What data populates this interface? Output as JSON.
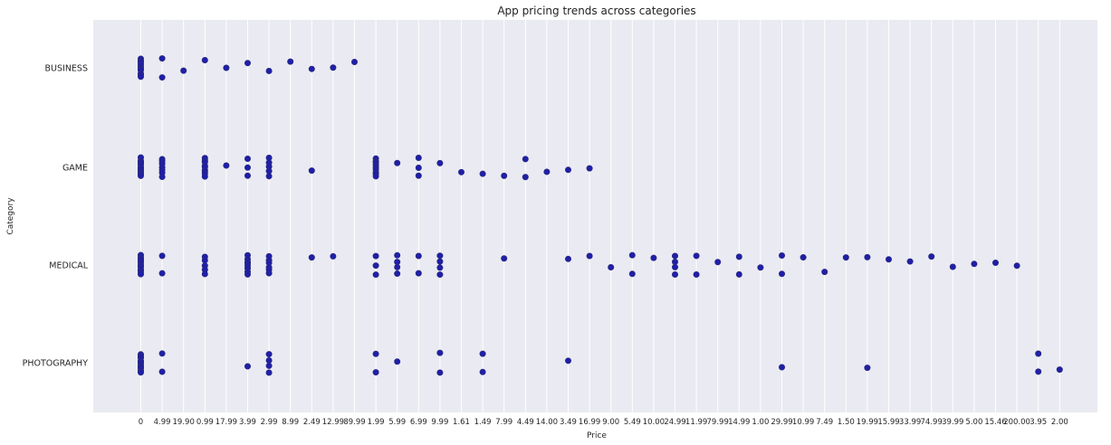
{
  "chart_data": {
    "type": "scatter",
    "title": "App pricing trends across categories",
    "xlabel": "Price",
    "ylabel": "Category",
    "grid": true,
    "colors": {
      "background": "#eaeaf2",
      "grid": "#ffffff",
      "point": "#1f1fa8"
    },
    "x_categories": [
      "0",
      "4.99",
      "19.90",
      "0.99",
      "17.99",
      "3.99",
      "2.99",
      "8.99",
      "2.49",
      "12.99",
      "89.99",
      "1.99",
      "5.99",
      "6.99",
      "9.99",
      "1.61",
      "1.49",
      "7.99",
      "4.49",
      "14.00",
      "3.49",
      "16.99",
      "9.00",
      "5.49",
      "10.00",
      "24.99",
      "11.99",
      "79.99",
      "14.99",
      "1.00",
      "29.99",
      "10.99",
      "7.49",
      "1.50",
      "19.99",
      "15.99",
      "33.99",
      "74.99",
      "39.99",
      "5.00",
      "15.46",
      "200.00",
      "3.95",
      "2.00"
    ],
    "y_categories": [
      "BUSINESS",
      "GAME",
      "MEDICAL",
      "PHOTOGRAPHY"
    ],
    "points": [
      {
        "category": "BUSINESS",
        "price": "0",
        "count": 10
      },
      {
        "category": "BUSINESS",
        "price": "4.99",
        "count": 2
      },
      {
        "category": "BUSINESS",
        "price": "19.90",
        "count": 1
      },
      {
        "category": "BUSINESS",
        "price": "0.99",
        "count": 1
      },
      {
        "category": "BUSINESS",
        "price": "17.99",
        "count": 1
      },
      {
        "category": "BUSINESS",
        "price": "3.99",
        "count": 1
      },
      {
        "category": "BUSINESS",
        "price": "2.99",
        "count": 1
      },
      {
        "category": "BUSINESS",
        "price": "8.99",
        "count": 1
      },
      {
        "category": "BUSINESS",
        "price": "2.49",
        "count": 1
      },
      {
        "category": "BUSINESS",
        "price": "12.99",
        "count": 1
      },
      {
        "category": "BUSINESS",
        "price": "89.99",
        "count": 1
      },
      {
        "category": "GAME",
        "price": "0",
        "count": 12
      },
      {
        "category": "GAME",
        "price": "4.99",
        "count": 7
      },
      {
        "category": "GAME",
        "price": "0.99",
        "count": 9
      },
      {
        "category": "GAME",
        "price": "17.99",
        "count": 1
      },
      {
        "category": "GAME",
        "price": "3.99",
        "count": 3
      },
      {
        "category": "GAME",
        "price": "2.99",
        "count": 5
      },
      {
        "category": "GAME",
        "price": "2.49",
        "count": 1
      },
      {
        "category": "GAME",
        "price": "1.99",
        "count": 9
      },
      {
        "category": "GAME",
        "price": "5.99",
        "count": 1
      },
      {
        "category": "GAME",
        "price": "6.99",
        "count": 3
      },
      {
        "category": "GAME",
        "price": "9.99",
        "count": 1
      },
      {
        "category": "GAME",
        "price": "1.61",
        "count": 1
      },
      {
        "category": "GAME",
        "price": "1.49",
        "count": 1
      },
      {
        "category": "GAME",
        "price": "7.99",
        "count": 1
      },
      {
        "category": "GAME",
        "price": "4.49",
        "count": 2
      },
      {
        "category": "GAME",
        "price": "14.00",
        "count": 1
      },
      {
        "category": "GAME",
        "price": "3.49",
        "count": 1
      },
      {
        "category": "GAME",
        "price": "16.99",
        "count": 1
      },
      {
        "category": "MEDICAL",
        "price": "0",
        "count": 12
      },
      {
        "category": "MEDICAL",
        "price": "4.99",
        "count": 2
      },
      {
        "category": "MEDICAL",
        "price": "0.99",
        "count": 5
      },
      {
        "category": "MEDICAL",
        "price": "3.99",
        "count": 8
      },
      {
        "category": "MEDICAL",
        "price": "2.99",
        "count": 6
      },
      {
        "category": "MEDICAL",
        "price": "2.49",
        "count": 1
      },
      {
        "category": "MEDICAL",
        "price": "12.99",
        "count": 1
      },
      {
        "category": "MEDICAL",
        "price": "1.99",
        "count": 3
      },
      {
        "category": "MEDICAL",
        "price": "5.99",
        "count": 4
      },
      {
        "category": "MEDICAL",
        "price": "6.99",
        "count": 2
      },
      {
        "category": "MEDICAL",
        "price": "9.99",
        "count": 4
      },
      {
        "category": "MEDICAL",
        "price": "7.99",
        "count": 1
      },
      {
        "category": "MEDICAL",
        "price": "3.49",
        "count": 1
      },
      {
        "category": "MEDICAL",
        "price": "16.99",
        "count": 1
      },
      {
        "category": "MEDICAL",
        "price": "9.00",
        "count": 1
      },
      {
        "category": "MEDICAL",
        "price": "5.49",
        "count": 2
      },
      {
        "category": "MEDICAL",
        "price": "10.00",
        "count": 1
      },
      {
        "category": "MEDICAL",
        "price": "24.99",
        "count": 4
      },
      {
        "category": "MEDICAL",
        "price": "11.99",
        "count": 2
      },
      {
        "category": "MEDICAL",
        "price": "79.99",
        "count": 1
      },
      {
        "category": "MEDICAL",
        "price": "14.99",
        "count": 2
      },
      {
        "category": "MEDICAL",
        "price": "1.00",
        "count": 1
      },
      {
        "category": "MEDICAL",
        "price": "29.99",
        "count": 2
      },
      {
        "category": "MEDICAL",
        "price": "10.99",
        "count": 1
      },
      {
        "category": "MEDICAL",
        "price": "7.49",
        "count": 1
      },
      {
        "category": "MEDICAL",
        "price": "1.50",
        "count": 1
      },
      {
        "category": "MEDICAL",
        "price": "19.99",
        "count": 1
      },
      {
        "category": "MEDICAL",
        "price": "15.99",
        "count": 1
      },
      {
        "category": "MEDICAL",
        "price": "33.99",
        "count": 1
      },
      {
        "category": "MEDICAL",
        "price": "74.99",
        "count": 1
      },
      {
        "category": "MEDICAL",
        "price": "39.99",
        "count": 1
      },
      {
        "category": "MEDICAL",
        "price": "5.00",
        "count": 1
      },
      {
        "category": "MEDICAL",
        "price": "15.46",
        "count": 1
      },
      {
        "category": "MEDICAL",
        "price": "200.00",
        "count": 1
      },
      {
        "category": "PHOTOGRAPHY",
        "price": "0",
        "count": 12
      },
      {
        "category": "PHOTOGRAPHY",
        "price": "4.99",
        "count": 2
      },
      {
        "category": "PHOTOGRAPHY",
        "price": "3.99",
        "count": 1
      },
      {
        "category": "PHOTOGRAPHY",
        "price": "2.99",
        "count": 4
      },
      {
        "category": "PHOTOGRAPHY",
        "price": "1.99",
        "count": 2
      },
      {
        "category": "PHOTOGRAPHY",
        "price": "5.99",
        "count": 1
      },
      {
        "category": "PHOTOGRAPHY",
        "price": "9.99",
        "count": 2
      },
      {
        "category": "PHOTOGRAPHY",
        "price": "1.49",
        "count": 2
      },
      {
        "category": "PHOTOGRAPHY",
        "price": "3.49",
        "count": 1
      },
      {
        "category": "PHOTOGRAPHY",
        "price": "29.99",
        "count": 1
      },
      {
        "category": "PHOTOGRAPHY",
        "price": "19.99",
        "count": 1
      },
      {
        "category": "PHOTOGRAPHY",
        "price": "3.95",
        "count": 2
      },
      {
        "category": "PHOTOGRAPHY",
        "price": "2.00",
        "count": 1
      }
    ]
  }
}
